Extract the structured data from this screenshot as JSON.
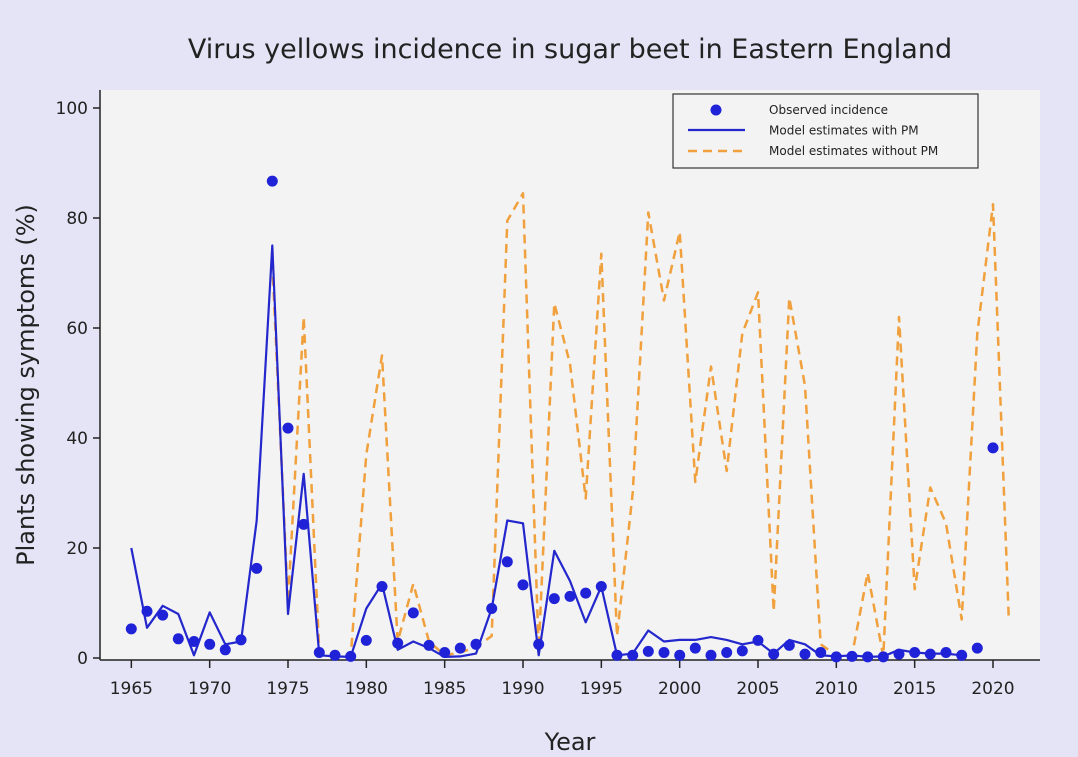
{
  "chart_data": {
    "type": "line",
    "title": "Virus yellows incidence in sugar beet in Eastern England",
    "xlabel": "Year",
    "ylabel": "Plants showing symptoms (%)",
    "xlim": [
      1963,
      2023
    ],
    "ylim": [
      0,
      100
    ],
    "xticks": [
      1965,
      1970,
      1975,
      1980,
      1985,
      1990,
      1995,
      2000,
      2005,
      2010,
      2015,
      2020
    ],
    "yticks": [
      0,
      20,
      40,
      60,
      80,
      100
    ],
    "legend_position": "top-right",
    "grid": false,
    "colors": {
      "observed": "#1f22d6",
      "with_pm": "#2327cc",
      "without_pm": "#f0a03c",
      "plot_bg": "#f3f3f3",
      "figure_bg": "#e4e4f6"
    },
    "series": [
      {
        "name": "Observed incidence",
        "kind": "scatter",
        "x": [
          1965,
          1966,
          1967,
          1968,
          1969,
          1970,
          1971,
          1972,
          1973,
          1974,
          1975,
          1976,
          1977,
          1978,
          1979,
          1980,
          1981,
          1982,
          1983,
          1984,
          1985,
          1986,
          1987,
          1988,
          1989,
          1990,
          1991,
          1992,
          1993,
          1994,
          1995,
          1996,
          1997,
          1998,
          1999,
          2000,
          2001,
          2002,
          2003,
          2004,
          2005,
          2006,
          2007,
          2008,
          2009,
          2010,
          2011,
          2012,
          2013,
          2014,
          2015,
          2016,
          2017,
          2018,
          2019,
          2020
        ],
        "y": [
          5.3,
          8.5,
          7.8,
          3.5,
          3.0,
          2.5,
          1.5,
          3.3,
          16.3,
          86.7,
          41.8,
          24.3,
          1.0,
          0.5,
          0.3,
          3.2,
          13.0,
          2.7,
          8.2,
          2.3,
          1.0,
          1.8,
          2.5,
          9.0,
          17.5,
          13.3,
          2.5,
          10.8,
          11.2,
          11.8,
          13.0,
          0.5,
          0.5,
          1.2,
          1.0,
          0.5,
          1.8,
          0.5,
          1.0,
          1.3,
          3.2,
          0.7,
          2.3,
          0.7,
          1.0,
          0.2,
          0.3,
          0.2,
          0.2,
          0.7,
          1.0,
          0.7,
          1.0,
          0.5,
          1.8,
          38.2
        ]
      },
      {
        "name": "Model estimates with PM",
        "kind": "line",
        "style": "solid",
        "x": [
          1965,
          1966,
          1967,
          1968,
          1969,
          1970,
          1971,
          1972,
          1973,
          1974,
          1975,
          1976,
          1977,
          1978,
          1979,
          1980,
          1981,
          1982,
          1983,
          1984,
          1985,
          1986,
          1987,
          1988,
          1989,
          1990,
          1991,
          1992,
          1993,
          1994,
          1995,
          1996,
          1997,
          1998,
          1999,
          2000,
          2001,
          2002,
          2003,
          2004,
          2005,
          2006,
          2007,
          2008,
          2009,
          2010,
          2011,
          2012,
          2013,
          2014,
          2015,
          2016,
          2017,
          2018
        ],
        "y": [
          20.0,
          5.5,
          9.5,
          8.0,
          0.5,
          8.3,
          2.5,
          3.0,
          25.0,
          75.0,
          8.0,
          33.5,
          0.5,
          0.3,
          0.2,
          9.0,
          13.5,
          1.5,
          3.0,
          1.8,
          0.2,
          0.3,
          0.8,
          9.0,
          25.0,
          24.5,
          0.5,
          19.5,
          14.0,
          6.5,
          13.0,
          0.5,
          0.8,
          5.0,
          3.0,
          3.3,
          3.3,
          3.8,
          3.3,
          2.5,
          3.0,
          0.8,
          3.3,
          2.5,
          0.5,
          0.3,
          0.5,
          0.2,
          0.3,
          1.5,
          1.0,
          0.8,
          0.8,
          0.5
        ]
      },
      {
        "name": "Model estimates without PM",
        "kind": "line",
        "style": "dashed",
        "x": [
          1974,
          1975,
          1976,
          1977,
          1978,
          1979,
          1980,
          1981,
          1982,
          1983,
          1984,
          1985,
          1986,
          1987,
          1988,
          1989,
          1990,
          1991,
          1992,
          1993,
          1994,
          1995,
          1996,
          1997,
          1998,
          1999,
          2000,
          2001,
          2002,
          2003,
          2004,
          2005,
          2006,
          2007,
          2008,
          2009,
          2010,
          2011,
          2012,
          2013,
          2014,
          2015,
          2016,
          2017,
          2018,
          2019,
          2020,
          2021
        ],
        "y": [
          72.0,
          10.0,
          62.0,
          1.0,
          0.5,
          0.3,
          37.0,
          55.0,
          3.0,
          13.5,
          3.0,
          0.5,
          1.0,
          2.0,
          4.0,
          79.5,
          84.5,
          1.5,
          64.5,
          53.5,
          29.0,
          73.5,
          4.0,
          30.0,
          81.0,
          65.0,
          77.5,
          32.0,
          53.0,
          34.0,
          59.0,
          66.5,
          8.5,
          65.5,
          49.5,
          2.5,
          0.5,
          0.5,
          15.5,
          0.3,
          62.0,
          12.5,
          31.0,
          24.5,
          7.0,
          59.0,
          82.5,
          7.5
        ]
      }
    ]
  }
}
